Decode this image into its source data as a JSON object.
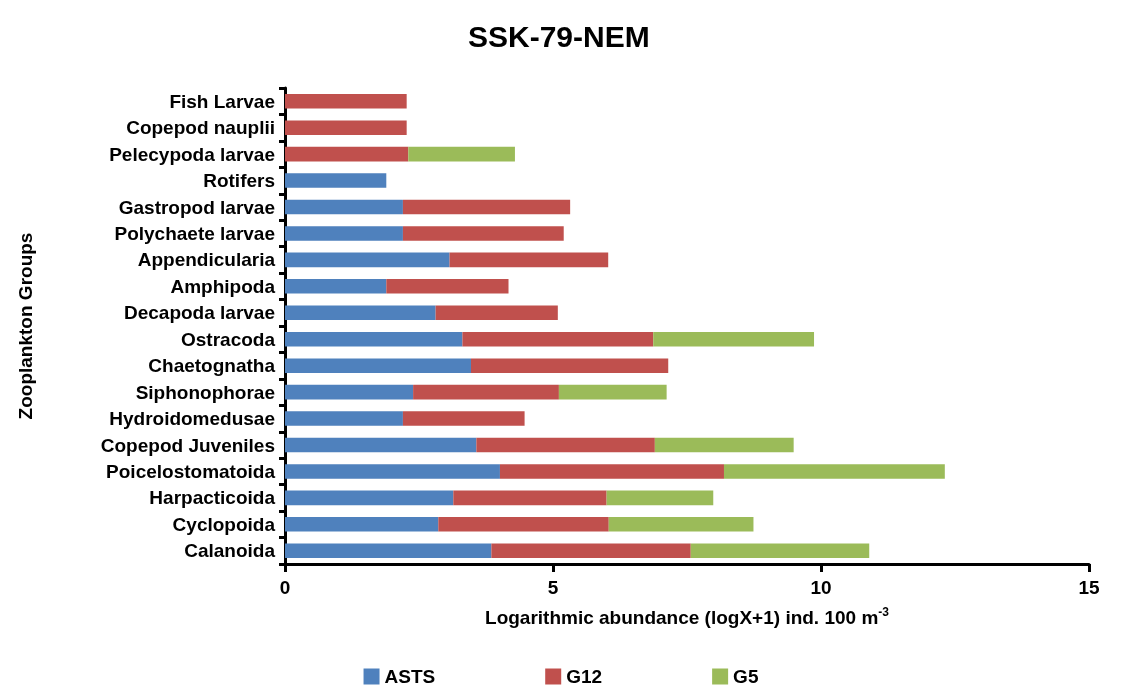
{
  "chart_data": {
    "type": "bar",
    "orientation": "horizontal",
    "stacked": true,
    "title": "SSK-79-NEM",
    "xlabel": "Logarithmic abundance (logX+1) ind. 100 m$^{-3}$",
    "ylabel": "Zooplankton Groups",
    "categories": [
      "Fish Larvae",
      "Copepod nauplii",
      "Pelecypoda larvae",
      "Rotifers",
      "Gastropod larvae",
      "Polychaete larvae",
      "Appendicularia",
      "Amphipoda",
      "Decapoda larvae",
      "Ostracoda",
      "Chaetognatha",
      "Siphonophorae",
      "Hydroidomedusae",
      "Copepod Juveniles",
      "Poicelostomatoida",
      "Harpacticoida",
      "Cyclopoida",
      "Calanoida"
    ],
    "series": [
      {
        "name": "ASTS",
        "color": "#4f81bd",
        "values": [
          null,
          null,
          null,
          1.89,
          2.2,
          2.2,
          3.07,
          1.89,
          2.81,
          3.31,
          3.47,
          2.39,
          2.2,
          3.57,
          4.01,
          3.14,
          2.86,
          3.85
        ]
      },
      {
        "name": "G12",
        "color": "#c0504d",
        "values": [
          2.27,
          2.27,
          2.3,
          null,
          3.12,
          3.0,
          2.96,
          2.28,
          2.28,
          3.56,
          3.68,
          2.72,
          2.27,
          3.33,
          4.18,
          2.86,
          3.18,
          3.72
        ]
      },
      {
        "name": "G5",
        "color": "#9bbb59",
        "values": [
          null,
          null,
          1.99,
          null,
          null,
          null,
          null,
          null,
          null,
          3.0,
          null,
          2.01,
          null,
          2.59,
          4.12,
          1.99,
          2.7,
          3.33
        ]
      }
    ],
    "xlim": [
      0,
      15
    ],
    "xticks": [
      0,
      5,
      10,
      15
    ],
    "grid": false,
    "legend": "bottom"
  }
}
